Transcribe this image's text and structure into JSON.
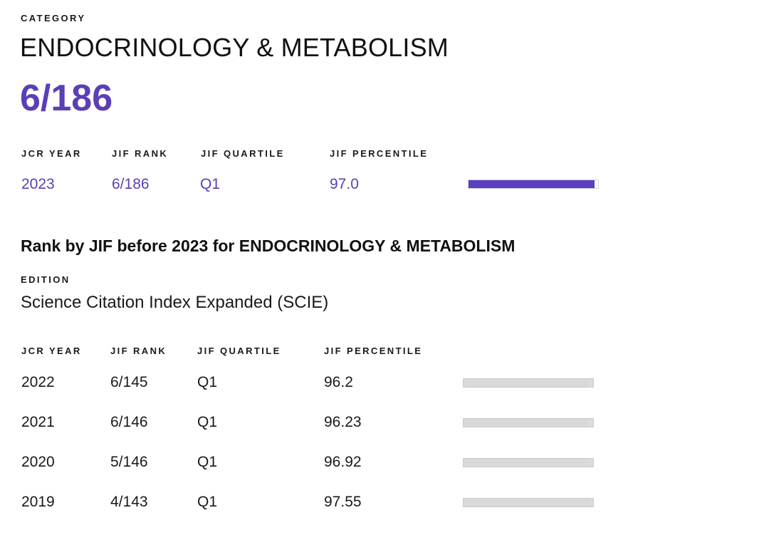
{
  "category": {
    "eyebrow": "CATEGORY",
    "name": "ENDOCRINOLOGY & METABOLISM",
    "rank": "6/186"
  },
  "current": {
    "headers": {
      "year": "JCR YEAR",
      "rank": "JIF RANK",
      "quartile": "JIF QUARTILE",
      "percentile": "JIF PERCENTILE"
    },
    "row": {
      "year": "2023",
      "rank": "6/186",
      "quartile": "Q1",
      "percentile": "97.0",
      "percentile_value": 97.0
    },
    "accent_color": "#5b3fb5"
  },
  "history": {
    "title": "Rank by JIF before 2023 for ENDOCRINOLOGY & METABOLISM",
    "edition_label": "EDITION",
    "edition_value": "Science Citation Index Expanded (SCIE)",
    "headers": {
      "year": "JCR YEAR",
      "rank": "JIF RANK",
      "quartile": "JIF QUARTILE",
      "percentile": "JIF PERCENTILE"
    },
    "rows": [
      {
        "year": "2022",
        "rank": "6/145",
        "quartile": "Q1",
        "percentile": "96.2",
        "percentile_value": 96.2
      },
      {
        "year": "2021",
        "rank": "6/146",
        "quartile": "Q1",
        "percentile": "96.23",
        "percentile_value": 96.23
      },
      {
        "year": "2020",
        "rank": "5/146",
        "quartile": "Q1",
        "percentile": "96.92",
        "percentile_value": 96.92
      },
      {
        "year": "2019",
        "rank": "4/143",
        "quartile": "Q1",
        "percentile": "97.55",
        "percentile_value": 97.55
      }
    ],
    "bar_color": "#d9d9d9"
  }
}
